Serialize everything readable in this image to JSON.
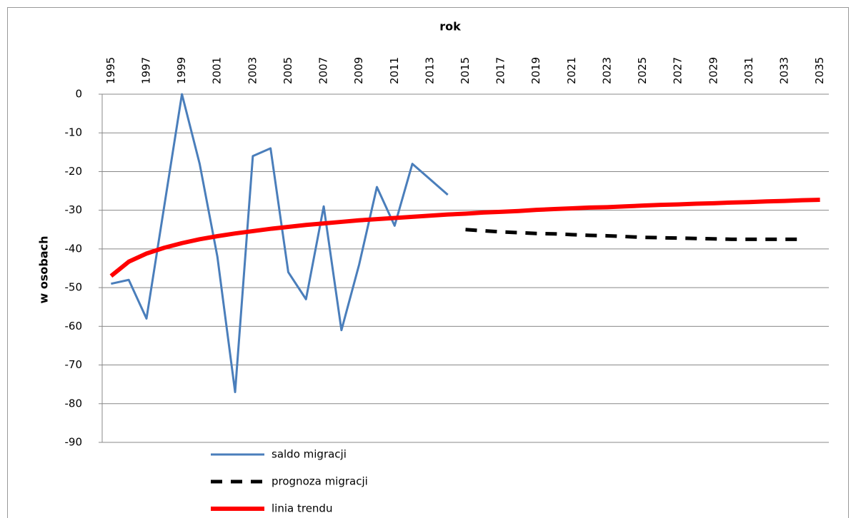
{
  "chart_data": {
    "type": "line",
    "xlabel": "rok",
    "ylabel": "w osobach",
    "xlim": [
      1994.5,
      2035.5
    ],
    "xticks": [
      1995,
      1997,
      1999,
      2001,
      2003,
      2005,
      2007,
      2009,
      2011,
      2013,
      2015,
      2017,
      2019,
      2021,
      2023,
      2025,
      2027,
      2029,
      2031,
      2033,
      2035
    ],
    "ylim": [
      -90,
      0
    ],
    "yticks": [
      0,
      -10,
      -20,
      -30,
      -40,
      -50,
      -60,
      -70,
      -80,
      -90
    ],
    "grid": true,
    "legend": "bottom",
    "series": [
      {
        "name": "saldo migracji",
        "color": "#4a7ebb",
        "style": "solid",
        "x": [
          1995,
          1996,
          1997,
          1998,
          1999,
          2000,
          2001,
          2002,
          2003,
          2004,
          2005,
          2006,
          2007,
          2008,
          2009,
          2010,
          2011,
          2012,
          2013,
          2014
        ],
        "values": [
          -49,
          -48,
          -58,
          -29,
          0,
          -18,
          -42,
          -77,
          -16,
          -14,
          -46,
          -53,
          -29,
          -61,
          -44,
          -24,
          -34,
          -18,
          -22,
          -26
        ]
      },
      {
        "name": "prognoza migracji",
        "color": "#000000",
        "style": "dashed",
        "x": [
          2015,
          2016,
          2017,
          2018,
          2019,
          2020,
          2021,
          2022,
          2023,
          2024,
          2025,
          2026,
          2027,
          2028,
          2029,
          2030,
          2031,
          2032,
          2033,
          2034
        ],
        "values": [
          -35,
          -35.3,
          -35.6,
          -35.8,
          -36,
          -36.1,
          -36.3,
          -36.5,
          -36.6,
          -36.8,
          -37,
          -37.1,
          -37.2,
          -37.3,
          -37.4,
          -37.5,
          -37.5,
          -37.5,
          -37.5,
          -37.5
        ]
      },
      {
        "name": "linia trendu",
        "color": "#ff0000",
        "style": "solid",
        "x": [
          1995,
          1996,
          1997,
          1998,
          1999,
          2000,
          2001,
          2002,
          2003,
          2004,
          2005,
          2006,
          2007,
          2008,
          2009,
          2010,
          2011,
          2012,
          2013,
          2014,
          2015,
          2016,
          2017,
          2018,
          2019,
          2020,
          2021,
          2022,
          2023,
          2024,
          2025,
          2026,
          2027,
          2028,
          2029,
          2030,
          2031,
          2032,
          2033,
          2034,
          2035
        ],
        "values": [
          -47,
          -43.3,
          -41.2,
          -39.7,
          -38.5,
          -37.5,
          -36.7,
          -36.0,
          -35.4,
          -34.8,
          -34.3,
          -33.8,
          -33.4,
          -33.0,
          -32.6,
          -32.3,
          -32.0,
          -31.7,
          -31.4,
          -31.1,
          -30.9,
          -30.6,
          -30.4,
          -30.2,
          -29.9,
          -29.7,
          -29.5,
          -29.3,
          -29.2,
          -29.0,
          -28.8,
          -28.6,
          -28.5,
          -28.3,
          -28.2,
          -28.0,
          -27.9,
          -27.7,
          -27.6,
          -27.4,
          -27.3
        ]
      }
    ]
  }
}
